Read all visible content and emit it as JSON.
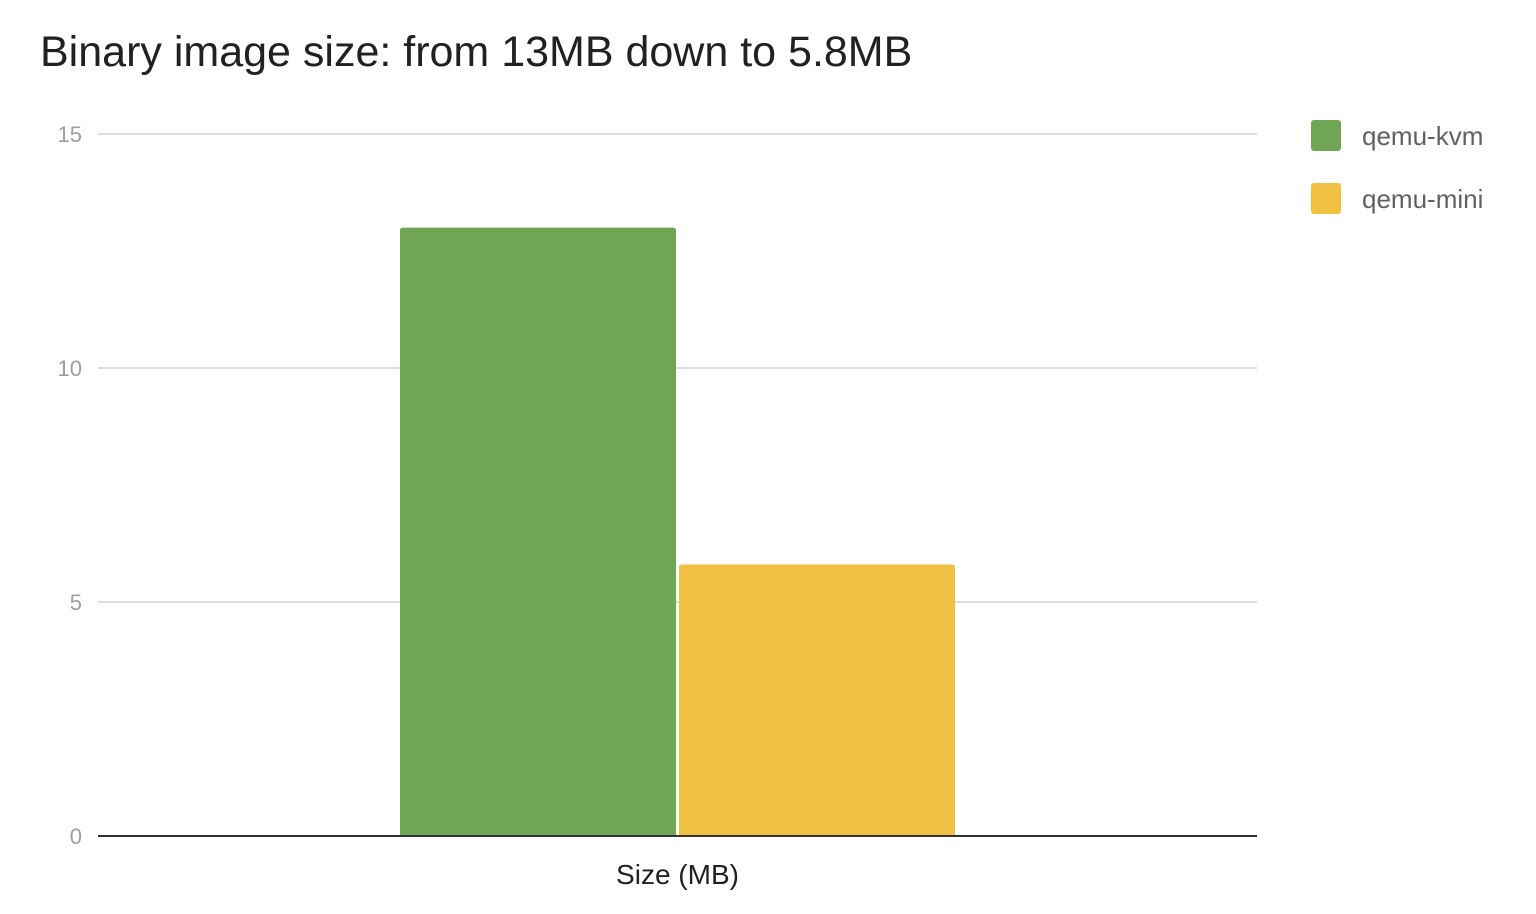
{
  "chart_data": {
    "type": "bar",
    "title": "Binary image size: from 13MB down to 5.8MB",
    "categories": [
      "Size (MB)"
    ],
    "series": [
      {
        "name": "qemu-kvm",
        "values": [
          13
        ],
        "color": "#6ea654"
      },
      {
        "name": "qemu-mini",
        "values": [
          5.8
        ],
        "color": "#f0c043"
      }
    ],
    "xlabel": "",
    "ylabel": "",
    "ylim": [
      0,
      15
    ],
    "yticks": [
      0,
      5,
      10,
      15
    ],
    "grid": true,
    "legend": "right"
  }
}
